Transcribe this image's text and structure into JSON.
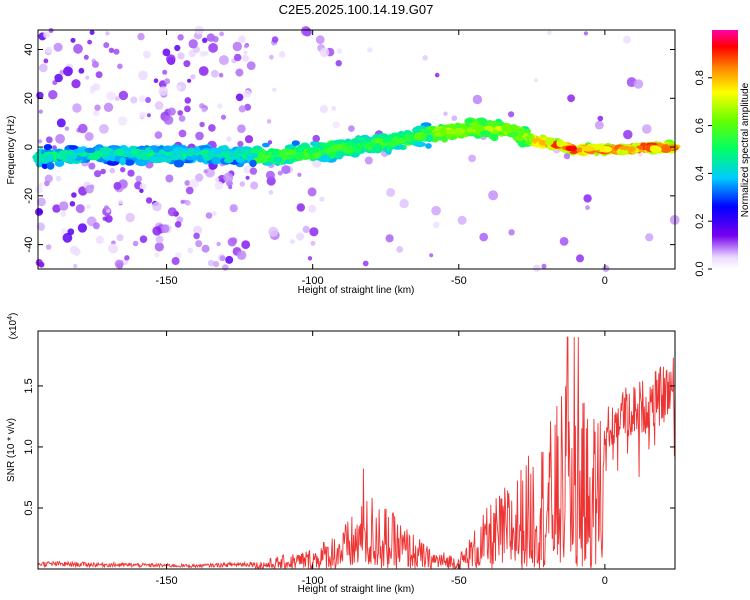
{
  "title": "C2E5.2025.100.14.19.G07",
  "chart_data": [
    {
      "type": "heatmap",
      "xlabel": "Height of straight line (km)",
      "ylabel": "Frequency (Hz)",
      "xlim": [
        -194,
        24
      ],
      "ylim": [
        -50,
        48
      ],
      "x_ticks": [
        -150,
        -100,
        -50,
        0
      ],
      "y_ticks": [
        40,
        20,
        0,
        -20,
        -40
      ],
      "colorbar": {
        "label": "Normalized spectral amplitude",
        "range": [
          0,
          1
        ],
        "ticks": [
          0.0,
          0.2,
          0.4,
          0.6,
          0.8
        ]
      },
      "ridge": [
        {
          "x": -194,
          "y": -4
        },
        {
          "x": -180,
          "y": -3
        },
        {
          "x": -160,
          "y": -3
        },
        {
          "x": -140,
          "y": -3
        },
        {
          "x": -120,
          "y": -4
        },
        {
          "x": -100,
          "y": -2
        },
        {
          "x": -80,
          "y": 1
        },
        {
          "x": -60,
          "y": 5
        },
        {
          "x": -45,
          "y": 8
        },
        {
          "x": -33,
          "y": 7
        },
        {
          "x": -25,
          "y": 3
        },
        {
          "x": -10,
          "y": -1
        },
        {
          "x": 0,
          "y": -1
        },
        {
          "x": 24,
          "y": 0
        }
      ]
    },
    {
      "type": "line",
      "xlabel": "Height of straight line (km)",
      "ylabel": "SNR (10 * v/v)",
      "y_multiplier": "(x10",
      "y_multiplier_exp": "4",
      "y_multiplier_close": ")",
      "xlim": [
        -194,
        24
      ],
      "ylim": [
        0,
        1.95
      ],
      "x_ticks": [
        -150,
        -100,
        -50,
        0
      ],
      "y_ticks": [
        0.5,
        1.0,
        1.5
      ],
      "color": "#ee3333",
      "envelope": [
        {
          "x": -194,
          "y": 0.05
        },
        {
          "x": -140,
          "y": 0.03
        },
        {
          "x": -120,
          "y": 0.05
        },
        {
          "x": -100,
          "y": 0.15
        },
        {
          "x": -90,
          "y": 0.3
        },
        {
          "x": -80,
          "y": 0.55
        },
        {
          "x": -70,
          "y": 0.35
        },
        {
          "x": -60,
          "y": 0.15
        },
        {
          "x": -50,
          "y": 0.1
        },
        {
          "x": -40,
          "y": 0.45
        },
        {
          "x": -30,
          "y": 0.7
        },
        {
          "x": -20,
          "y": 1.0
        },
        {
          "x": -12,
          "y": 1.4
        },
        {
          "x": -5,
          "y": 1.1
        },
        {
          "x": 5,
          "y": 1.45
        },
        {
          "x": 15,
          "y": 1.55
        },
        {
          "x": 24,
          "y": 1.72
        }
      ]
    }
  ]
}
